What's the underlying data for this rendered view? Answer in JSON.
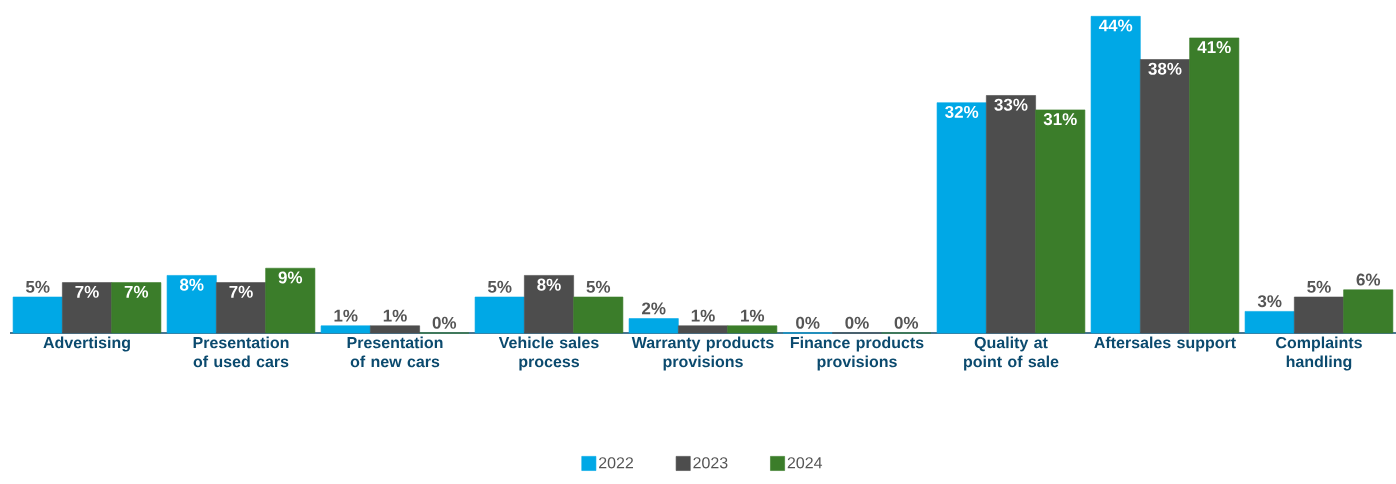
{
  "chart_data": {
    "type": "bar",
    "categories": [
      "Advertising",
      "Presentation of used cars",
      "Presentation of new cars",
      "Vehicle sales process",
      "Warranty products provisions",
      "Finance products provisions",
      "Quality at point of sale",
      "Aftersales support",
      "Complaints handling"
    ],
    "series": [
      {
        "name": "2022",
        "color": "#00a8e6",
        "values": [
          5,
          8,
          1,
          5,
          2,
          0,
          32,
          44,
          3
        ],
        "value_labels": [
          "5%",
          "8%",
          "1%",
          "5%",
          "2%",
          "0%",
          "32%",
          "44%",
          "3%"
        ]
      },
      {
        "name": "2023",
        "color": "#4d4d4d",
        "values": [
          7,
          7,
          1,
          8,
          1,
          0,
          33,
          38,
          5
        ],
        "value_labels": [
          "7%",
          "7%",
          "1%",
          "8%",
          "1%",
          "0%",
          "33%",
          "38%",
          "5%"
        ]
      },
      {
        "name": "2024",
        "color": "#3b7d2a",
        "values": [
          7,
          9,
          0,
          5,
          1,
          0,
          31,
          41,
          6
        ],
        "value_labels": [
          "7%",
          "9%",
          "0%",
          "5%",
          "1%",
          "0%",
          "31%",
          "41%",
          "6%"
        ]
      }
    ],
    "legend": "bottom"
  }
}
